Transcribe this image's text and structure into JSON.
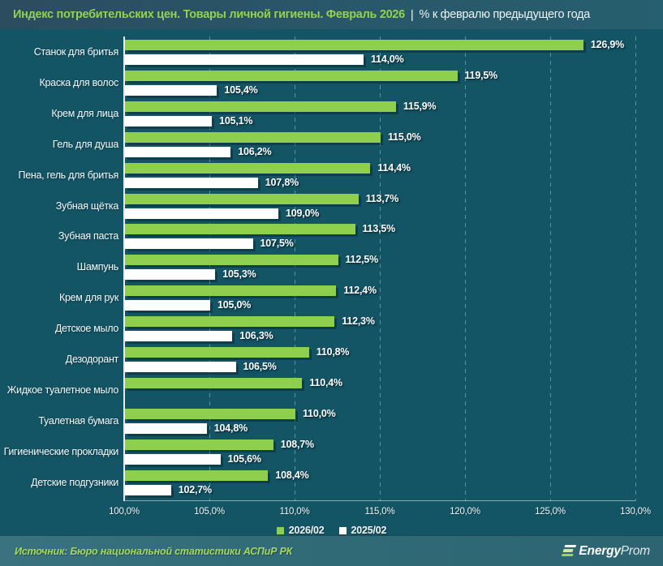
{
  "title": {
    "main": "Индекс потребительских цен. Товары личной гигиены. Февраль 2026",
    "separator": "|",
    "subtitle": "% к февралю предыдущего года"
  },
  "chart_data": {
    "type": "bar",
    "orientation": "horizontal",
    "title": "Индекс потребительских цен. Товары личной гигиены. Февраль 2026",
    "subtitle": "% к февралю предыдущего года",
    "xlabel": "",
    "ylabel": "",
    "xlim": [
      100,
      130
    ],
    "grid": "vertical-dashed",
    "legend_position": "bottom-center",
    "categories": [
      "Станок для бритья",
      "Краска для волос",
      "Крем для лица",
      "Гель для душа",
      "Пена, гель для бритья",
      "Зубная щётка",
      "Зубная паста",
      "Шампунь",
      "Крем для рук",
      "Детское мыло",
      "Дезодорант",
      "Жидкое туалетное мыло",
      "Туалетная бумага",
      "Гигиенические прокладки",
      "Детские подгузники"
    ],
    "series": [
      {
        "name": "2026/02",
        "color": "#8ecf4d",
        "values": [
          126.9,
          119.5,
          115.9,
          115.0,
          114.4,
          113.7,
          113.5,
          112.5,
          112.4,
          112.3,
          110.8,
          110.4,
          110.0,
          108.7,
          108.4
        ],
        "labels": [
          "126,9%",
          "119,5%",
          "115,9%",
          "115,0%",
          "114,4%",
          "113,7%",
          "113,5%",
          "112,5%",
          "112,4%",
          "112,3%",
          "110,8%",
          "110,4%",
          "110,0%",
          "108,7%",
          "108,4%"
        ]
      },
      {
        "name": "2025/02",
        "color": "#ffffff",
        "values": [
          114.0,
          105.4,
          105.1,
          106.2,
          107.8,
          109.0,
          107.5,
          105.3,
          105.0,
          106.3,
          106.5,
          null,
          104.8,
          105.6,
          102.7
        ],
        "labels": [
          "114,0%",
          "105,4%",
          "105,1%",
          "106,2%",
          "107,8%",
          "109,0%",
          "107,5%",
          "105,3%",
          "105,0%",
          "106,3%",
          "106,5%",
          null,
          "104,8%",
          "105,6%",
          "102,7%"
        ]
      }
    ],
    "xticks": [
      "100,0%",
      "105,0%",
      "110,0%",
      "115,0%",
      "120,0%",
      "125,0%",
      "130,0%"
    ],
    "xtick_values": [
      100,
      105,
      110,
      115,
      120,
      125,
      130
    ]
  },
  "colors": {
    "accent_green": "#8ecf4d",
    "bar_white": "#ffffff",
    "chart_background": "#145565",
    "titlebar_background": "#29586a",
    "footer_background": "#316b77"
  },
  "footer": {
    "source": "Источник: Бюро национальной статистики АСПиР РК",
    "logo": {
      "bold": "Energy",
      "light": "Prom"
    }
  }
}
